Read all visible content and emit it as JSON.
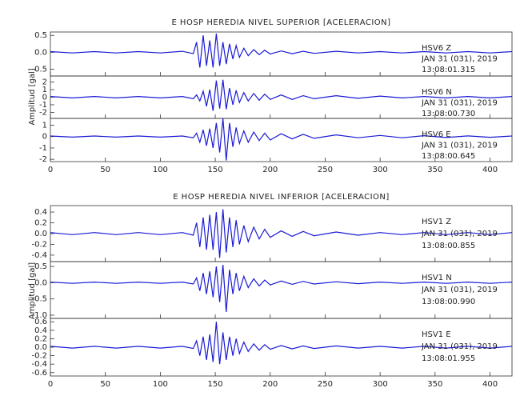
{
  "chart_data": [
    {
      "type": "line",
      "title": "E HOSP HEREDIA NIVEL SUPERIOR [ACELERACION]",
      "ylabel": "Amplitud [gal]",
      "xlim": [
        0,
        420
      ],
      "xticks": [
        0,
        50,
        100,
        150,
        200,
        250,
        300,
        350,
        400
      ],
      "x": [
        0,
        20,
        40,
        60,
        80,
        100,
        120,
        130,
        133,
        136,
        139,
        142,
        145,
        148,
        151,
        154,
        157,
        160,
        163,
        166,
        169,
        172,
        176,
        180,
        185,
        190,
        195,
        200,
        210,
        220,
        230,
        240,
        260,
        280,
        300,
        320,
        340,
        360,
        380,
        400,
        420
      ],
      "panels": [
        {
          "ylim": [
            -0.7,
            0.6
          ],
          "yticks": [
            {
              "value": -0.5,
              "label": "-0.5"
            },
            {
              "value": 0,
              "label": "0.0"
            },
            {
              "value": 0.5,
              "label": "0.5"
            }
          ],
          "color": "#1a1ad6",
          "station": "HSV6   Z",
          "date": "JAN 31 (031), 2019",
          "time": "13:08:01.315",
          "values": [
            0.02,
            -0.02,
            0.02,
            -0.02,
            0.02,
            -0.02,
            0.03,
            -0.04,
            0.3,
            -0.45,
            0.5,
            -0.4,
            0.35,
            -0.45,
            0.55,
            -0.4,
            0.3,
            -0.35,
            0.25,
            -0.2,
            0.2,
            -0.15,
            0.12,
            -0.1,
            0.08,
            -0.07,
            0.06,
            -0.05,
            0.04,
            -0.04,
            0.03,
            -0.03,
            0.03,
            -0.02,
            0.02,
            -0.02,
            0.02,
            -0.02,
            0.02,
            -0.02,
            0.02
          ]
        },
        {
          "ylim": [
            -2.8,
            2.8
          ],
          "yticks": [
            -2,
            -1,
            0,
            1,
            2
          ],
          "color": "#1a1ad6",
          "station": "HSV6   N",
          "date": "JAN 31 (031), 2019",
          "time": "13:08:00.730",
          "values": [
            0.1,
            -0.1,
            0.1,
            -0.1,
            0.1,
            -0.1,
            0.1,
            -0.2,
            0.3,
            -0.5,
            0.8,
            -1.2,
            1.0,
            -1.8,
            2.2,
            -1.5,
            2.3,
            -1.6,
            1.2,
            -1.0,
            0.9,
            -0.7,
            0.6,
            -0.5,
            0.5,
            -0.4,
            0.4,
            -0.3,
            0.3,
            -0.3,
            0.2,
            -0.2,
            0.2,
            -0.15,
            0.15,
            -0.1,
            0.1,
            -0.1,
            0.1,
            -0.1,
            0.1
          ]
        },
        {
          "ylim": [
            -2.2,
            1.6
          ],
          "yticks": [
            -2,
            -1,
            0,
            1
          ],
          "color": "#1a1ad6",
          "station": "HSV6   E",
          "date": "JAN 31 (031), 2019",
          "time": "13:08:00.645",
          "values": [
            0.05,
            -0.05,
            0.05,
            -0.05,
            0.05,
            -0.05,
            0.05,
            -0.1,
            0.3,
            -0.5,
            0.6,
            -0.8,
            0.7,
            -1.0,
            1.2,
            -1.4,
            1.6,
            -2.1,
            1.2,
            -0.9,
            0.8,
            -0.6,
            0.5,
            -0.5,
            0.4,
            -0.35,
            0.3,
            -0.3,
            0.25,
            -0.2,
            0.2,
            -0.15,
            0.15,
            -0.1,
            0.1,
            -0.1,
            0.08,
            -0.08,
            0.06,
            -0.06,
            0.05
          ]
        }
      ]
    },
    {
      "type": "line",
      "title": "E HOSP HEREDIA NIVEL INFERIOR [ACELERACION]",
      "ylabel": "Amplitud [gal]",
      "xlim": [
        0,
        420
      ],
      "xticks": [
        0,
        50,
        100,
        150,
        200,
        250,
        300,
        350,
        400
      ],
      "x": [
        0,
        20,
        40,
        60,
        80,
        100,
        120,
        130,
        133,
        136,
        139,
        142,
        145,
        148,
        151,
        154,
        157,
        160,
        163,
        166,
        169,
        172,
        176,
        180,
        185,
        190,
        195,
        200,
        210,
        220,
        230,
        240,
        260,
        280,
        300,
        320,
        340,
        360,
        380,
        400,
        420
      ],
      "panels": [
        {
          "ylim": [
            -0.52,
            0.52
          ],
          "yticks": [
            -0.4,
            -0.2,
            {
              "value": 0,
              "label": "0.0"
            },
            0.2,
            0.4
          ],
          "color": "#1a1ad6",
          "station": "HSV1   Z",
          "date": "JAN 31 (031), 2019",
          "time": "13:08:00.855",
          "values": [
            0.02,
            -0.02,
            0.02,
            -0.02,
            0.02,
            -0.02,
            0.02,
            -0.03,
            0.2,
            -0.25,
            0.3,
            -0.3,
            0.35,
            -0.3,
            0.4,
            -0.45,
            0.45,
            -0.35,
            0.3,
            -0.25,
            0.25,
            -0.2,
            0.15,
            -0.15,
            0.12,
            -0.1,
            0.08,
            -0.07,
            0.05,
            -0.05,
            0.04,
            -0.04,
            0.03,
            -0.03,
            0.02,
            -0.02,
            0.02,
            -0.02,
            0.02,
            -0.02,
            0.02
          ]
        },
        {
          "ylim": [
            -1.1,
            0.65
          ],
          "yticks": [
            {
              "value": -1,
              "label": "-1.0"
            },
            {
              "value": -0.5,
              "label": "-0.5"
            },
            {
              "value": 0,
              "label": "0.0"
            },
            0.5
          ],
          "color": "#1a1ad6",
          "station": "HSV1   N",
          "date": "JAN 31 (031), 2019",
          "time": "13:08:00.990",
          "values": [
            0.02,
            -0.02,
            0.02,
            -0.02,
            0.02,
            -0.02,
            0.02,
            -0.04,
            0.15,
            -0.25,
            0.3,
            -0.35,
            0.35,
            -0.45,
            0.5,
            -0.6,
            0.55,
            -0.9,
            0.4,
            -0.35,
            0.3,
            -0.25,
            0.2,
            -0.15,
            0.12,
            -0.1,
            0.08,
            -0.07,
            0.05,
            -0.05,
            0.04,
            -0.04,
            0.03,
            -0.03,
            0.02,
            -0.02,
            0.02,
            -0.02,
            0.02,
            -0.02,
            0.02
          ]
        },
        {
          "ylim": [
            -0.68,
            0.68
          ],
          "yticks": [
            -0.6,
            -0.4,
            -0.2,
            {
              "value": 0,
              "label": "0.0"
            },
            0.2,
            0.4,
            0.6
          ],
          "color": "#1a1ad6",
          "station": "HSV1   E",
          "date": "JAN 31 (031), 2019",
          "time": "13:08:01.955",
          "values": [
            0.02,
            -0.02,
            0.02,
            -0.02,
            0.02,
            -0.02,
            0.02,
            -0.03,
            0.15,
            -0.2,
            0.25,
            -0.3,
            0.3,
            -0.35,
            0.6,
            -0.4,
            0.35,
            -0.3,
            0.25,
            -0.2,
            0.2,
            -0.15,
            0.12,
            -0.1,
            0.08,
            -0.07,
            0.06,
            -0.05,
            0.04,
            -0.04,
            0.03,
            -0.03,
            0.03,
            -0.02,
            0.02,
            -0.02,
            0.02,
            -0.02,
            0.02,
            -0.02,
            0.02
          ]
        }
      ]
    }
  ]
}
